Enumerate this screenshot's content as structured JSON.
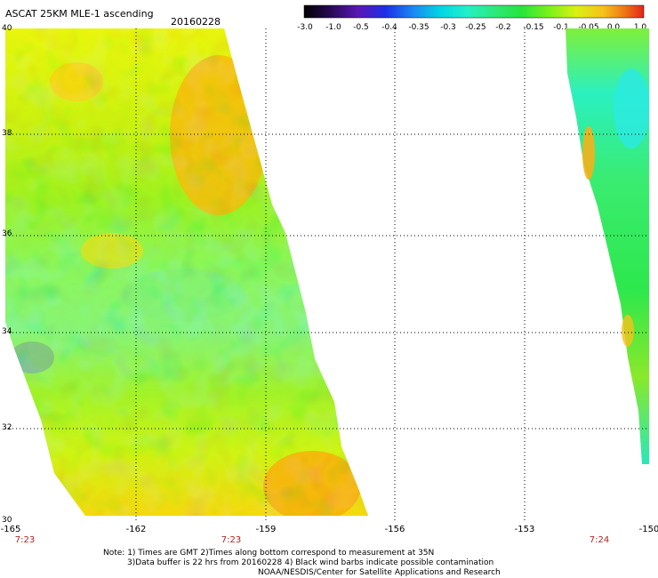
{
  "header": {
    "title": "ASCAT 25KM MLE-1 ascending",
    "date": "20160228"
  },
  "colorbar": {
    "labels": [
      "-3.0",
      "-1.0",
      "-0.5",
      "-0.4",
      "-0.35",
      "-0.3",
      "-0.25",
      "-0.2",
      "-0.15",
      "-0.1",
      "-0.05",
      "0.0",
      "1.0"
    ],
    "stops": [
      "#000000",
      "#2a0a55",
      "#5a17b6",
      "#1c2fe6",
      "#1a87f2",
      "#00d5e3",
      "#23f0c8",
      "#2ee87b",
      "#26e53a",
      "#7af01b",
      "#d9f013",
      "#f5c21a",
      "#f07a14",
      "#e5231c"
    ]
  },
  "map": {
    "latitudes": [
      "40",
      "38",
      "36",
      "34",
      "32",
      "30"
    ],
    "longitudes": [
      "-165",
      "-162",
      "-159",
      "-156",
      "-153",
      "-150"
    ],
    "pass_times": [
      "7:23",
      "7:23",
      "7:24"
    ]
  },
  "notes": {
    "line1": "Note: 1) Times are GMT 2)Times along bottom correspond to measurement at 35N",
    "line2": "3)Data buffer is 22 hrs from 20160228 4) Black wind barbs indicate possible contamination",
    "line3": "NOAA/NESDIS/Center for Satellite Applications and Research"
  }
}
